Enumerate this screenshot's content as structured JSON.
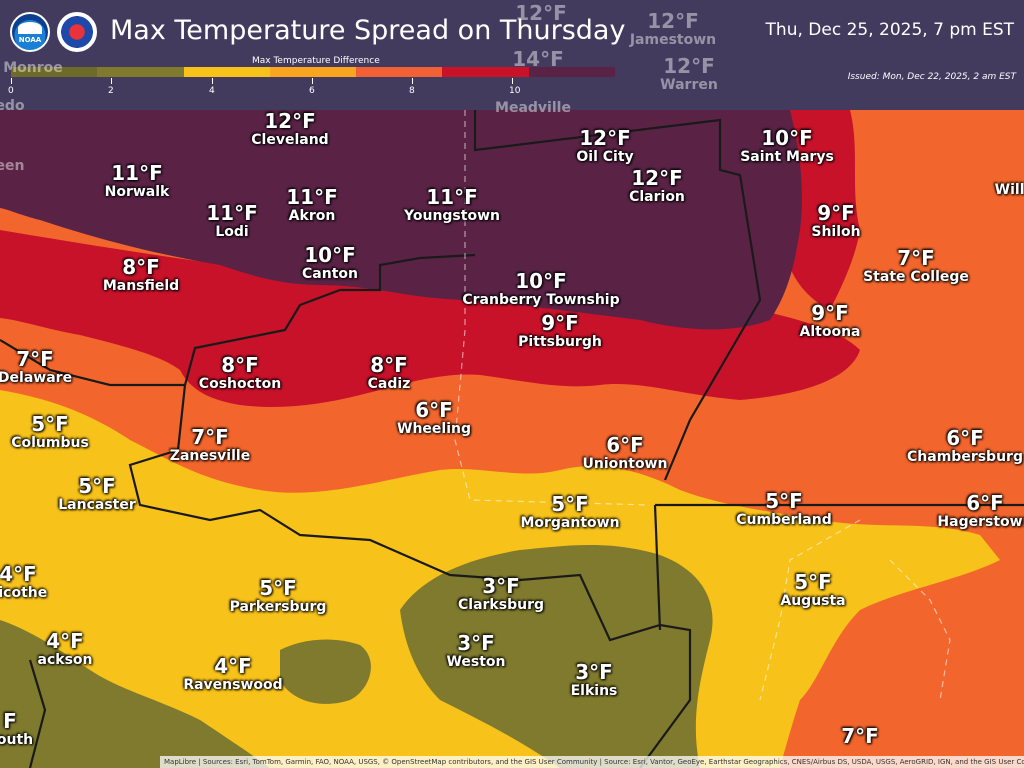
{
  "header": {
    "title": "Max Temperature Spread on Thursday",
    "valid_time": "Thu, Dec 25, 2025, 7 pm EST",
    "issued": "Issued: Mon, Dec 22, 2025, 2 am EST",
    "logo_noaa": "NOAA"
  },
  "legend": {
    "title": "Max Temperature Difference",
    "ticks": [
      "0",
      "2",
      "4",
      "6",
      "8",
      "10"
    ],
    "colors": [
      "#6e6a2a",
      "#7f7a2e",
      "#f7c21a",
      "#f9a51f",
      "#f26135",
      "#c8122a",
      "#5a2346"
    ]
  },
  "cities": [
    {
      "value": "12°F",
      "name": "Cleveland"
    },
    {
      "value": "11°F",
      "name": "Norwalk"
    },
    {
      "value": "11°F",
      "name": "Akron"
    },
    {
      "value": "11°F",
      "name": "Lodi"
    },
    {
      "value": "11°F",
      "name": "Youngstown"
    },
    {
      "value": "10°F",
      "name": "Canton"
    },
    {
      "value": "8°F",
      "name": "Mansfield"
    },
    {
      "value": "12°F",
      "name": "Oil City"
    },
    {
      "value": "12°F",
      "name": "Clarion"
    },
    {
      "value": "10°F",
      "name": "Saint Marys"
    },
    {
      "value": "9°F",
      "name": "Shiloh"
    },
    {
      "value": "7°F",
      "name": "State College"
    },
    {
      "value": "9°F",
      "name": "Altoona"
    },
    {
      "value": "10°F",
      "name": "Cranberry Township"
    },
    {
      "value": "9°F",
      "name": "Pittsburgh"
    },
    {
      "value": "8°F",
      "name": "Coshocton"
    },
    {
      "value": "8°F",
      "name": "Cadiz"
    },
    {
      "value": "7°F",
      "name": "Delaware"
    },
    {
      "value": "5°F",
      "name": "Columbus"
    },
    {
      "value": "7°F",
      "name": "Zanesville"
    },
    {
      "value": "6°F",
      "name": "Wheeling"
    },
    {
      "value": "6°F",
      "name": "Uniontown"
    },
    {
      "value": "6°F",
      "name": "Chambersburg"
    },
    {
      "value": "5°F",
      "name": "Lancaster"
    },
    {
      "value": "5°F",
      "name": "Morgantown"
    },
    {
      "value": "5°F",
      "name": "Cumberland"
    },
    {
      "value": "6°F",
      "name": "Hagerstown"
    },
    {
      "value": "4°F",
      "name": "llicothe"
    },
    {
      "value": "5°F",
      "name": "Parkersburg"
    },
    {
      "value": "3°F",
      "name": "Clarksburg"
    },
    {
      "value": "5°F",
      "name": "Augusta"
    },
    {
      "value": "4°F",
      "name": "ackson"
    },
    {
      "value": "4°F",
      "name": "Ravenswood"
    },
    {
      "value": "3°F",
      "name": "Weston"
    },
    {
      "value": "3°F",
      "name": "Elkins"
    },
    {
      "value": "F",
      "name": "nouth"
    },
    {
      "value": "7°F",
      "name": ""
    },
    {
      "value": "",
      "name": "Meadville"
    },
    {
      "value": "12°F",
      "name": "Jamestown"
    },
    {
      "value": "12°F",
      "name": "Warren"
    },
    {
      "value": "12°F",
      "name": ""
    },
    {
      "value": "14°F",
      "name": ""
    },
    {
      "value": "",
      "name": "Monroe"
    },
    {
      "value": "",
      "name": "edo"
    },
    {
      "value": "",
      "name": "een"
    },
    {
      "value": "",
      "name": "Willi"
    }
  ],
  "attribution": "MapLibre | Sources: Esri, TomTom, Garmin, FAO, NOAA, USGS, © OpenStreetMap contributors, and the GIS User Community | Source: Esri, Vantor, GeoEye, Earthstar Geographics, CNES/Airbus DS, USDA, USGS, AeroGRID, IGN, and the GIS User Community"
}
